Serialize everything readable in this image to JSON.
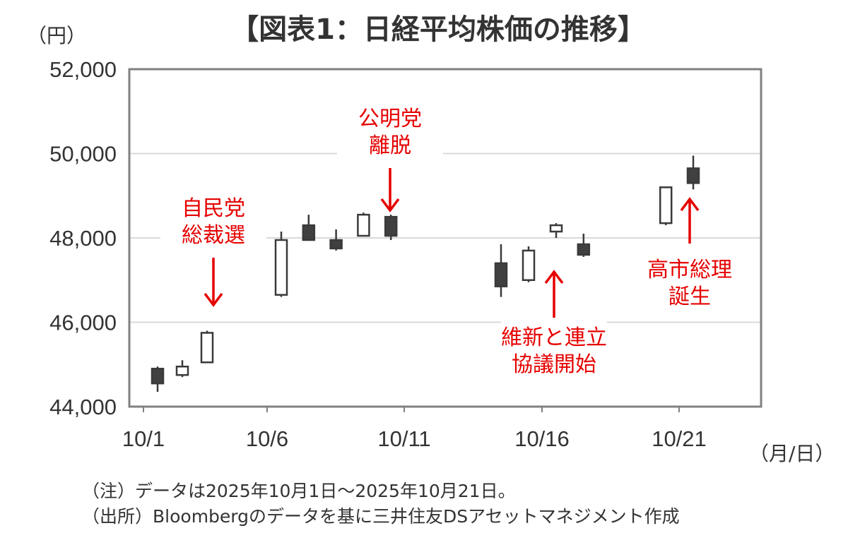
{
  "title": "【図表1：日経平均株価の推移】",
  "y_unit": "（円）",
  "x_unit": "（月/日）",
  "notes": {
    "note": "（注）データは2025年10月1日～2025年10月21日。",
    "source": "（出所）Bloombergのデータを基に三井住友DSアセットマネジメント作成"
  },
  "chart_data": {
    "type": "candlestick",
    "ylim": [
      44000,
      52000
    ],
    "yticks": [
      "44,000",
      "46,000",
      "48,000",
      "50,000",
      "52,000"
    ],
    "ytick_values": [
      44000,
      46000,
      48000,
      50000,
      52000
    ],
    "xlim": [
      1,
      26
    ],
    "xticks": [
      "10/1",
      "10/6",
      "10/11",
      "10/16",
      "10/21"
    ],
    "xtick_values": [
      1,
      6,
      11,
      16,
      21
    ],
    "grid": true,
    "colors": {
      "up": "#ffffff",
      "down": "#404040",
      "outline": "#3a3a3a",
      "annotation": "#e60000",
      "grid": "#d9d9d9",
      "axis": "#808080"
    },
    "candles": [
      {
        "date": "10/1",
        "open": 44900,
        "high": 44950,
        "low": 44350,
        "close": 44550
      },
      {
        "date": "10/2",
        "open": 44750,
        "high": 45100,
        "low": 44700,
        "close": 44950
      },
      {
        "date": "10/3",
        "open": 45050,
        "high": 45800,
        "low": 45050,
        "close": 45750
      },
      {
        "date": "10/6",
        "open": 46650,
        "high": 48150,
        "low": 46600,
        "close": 47950
      },
      {
        "date": "10/7",
        "open": 48300,
        "high": 48550,
        "low": 47950,
        "close": 47950
      },
      {
        "date": "10/8",
        "open": 47950,
        "high": 48200,
        "low": 47700,
        "close": 47750
      },
      {
        "date": "10/9",
        "open": 48050,
        "high": 48600,
        "low": 48050,
        "close": 48550
      },
      {
        "date": "10/10",
        "open": 48500,
        "high": 48550,
        "low": 47950,
        "close": 48050
      },
      {
        "date": "10/14",
        "open": 47400,
        "high": 47850,
        "low": 46600,
        "close": 46850
      },
      {
        "date": "10/15",
        "open": 47000,
        "high": 47800,
        "low": 46950,
        "close": 47700
      },
      {
        "date": "10/16",
        "open": 48150,
        "high": 48350,
        "low": 48000,
        "close": 48300
      },
      {
        "date": "10/17",
        "open": 47850,
        "high": 48100,
        "low": 47550,
        "close": 47600
      },
      {
        "date": "10/20",
        "open": 48350,
        "high": 49200,
        "low": 48300,
        "close": 49200
      },
      {
        "date": "10/21",
        "open": 49650,
        "high": 49950,
        "low": 49150,
        "close": 49300
      }
    ],
    "annotations": [
      {
        "lines": [
          "自民党",
          "総裁選"
        ],
        "date": "10/4",
        "direction": "down"
      },
      {
        "lines": [
          "公明党",
          "離脱"
        ],
        "date": "10/10",
        "direction": "down"
      },
      {
        "lines": [
          "維新と連立",
          "協議開始"
        ],
        "date": "10/16",
        "direction": "up"
      },
      {
        "lines": [
          "高市総理",
          "誕生"
        ],
        "date": "10/22",
        "direction": "up"
      }
    ]
  }
}
